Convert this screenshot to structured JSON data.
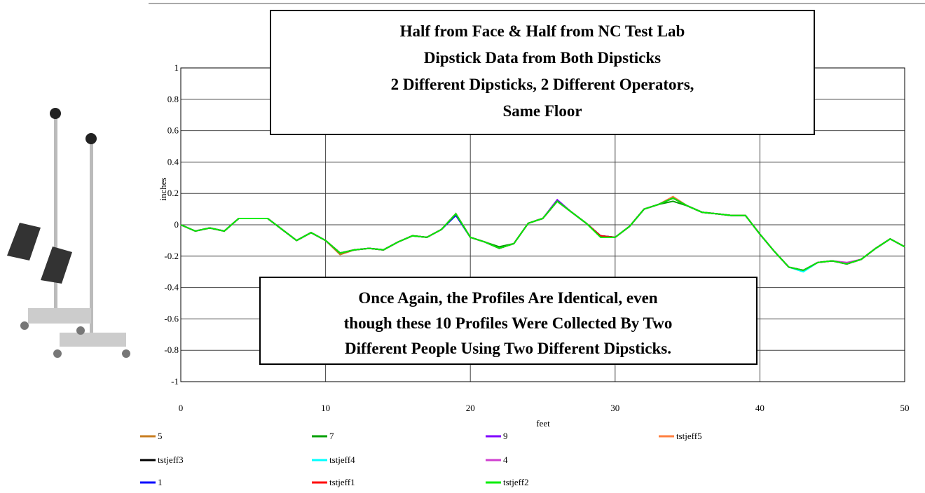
{
  "chart_data": {
    "type": "line",
    "title_lines": [
      "Half from Face & Half from NC Test Lab",
      "Dipstick Data from Both Dipsticks",
      "2 Different Dipsticks, 2 Different Operators,",
      "Same Floor"
    ],
    "annotation_lines": [
      "Once Again, the Profiles Are Identical, even",
      "though these 10 Profiles Were Collected By Two",
      "Different People Using Two Different Dipsticks."
    ],
    "xlabel": "feet",
    "ylabel": "inches",
    "xlim": [
      0,
      50
    ],
    "xticks": [
      0,
      10,
      20,
      30,
      40,
      50
    ],
    "ylim": [
      -1,
      1
    ],
    "yticks": [
      -1,
      -0.8,
      -0.6,
      -0.4,
      -0.2,
      0,
      0.2,
      0.4,
      0.6,
      0.8,
      1
    ],
    "grid": true,
    "x": [
      0,
      1,
      2,
      3,
      4,
      5,
      6,
      7,
      8,
      9,
      10,
      11,
      12,
      13,
      14,
      15,
      16,
      17,
      18,
      19,
      20,
      21,
      22,
      23,
      24,
      25,
      26,
      27,
      28,
      29,
      30,
      31,
      32,
      33,
      34,
      35,
      36,
      37,
      38,
      39,
      40,
      41,
      42,
      43,
      44,
      45,
      46,
      47,
      48,
      49,
      50
    ],
    "series": [
      {
        "name": "5",
        "color": "#c87d20",
        "values": [
          0,
          -0.04,
          -0.02,
          -0.04,
          0.04,
          0.04,
          0.04,
          -0.03,
          -0.1,
          -0.05,
          -0.1,
          -0.19,
          -0.16,
          -0.15,
          -0.16,
          -0.11,
          -0.07,
          -0.08,
          -0.03,
          0.07,
          -0.08,
          -0.11,
          -0.15,
          -0.12,
          0.01,
          0.04,
          0.15,
          0.08,
          0.01,
          -0.07,
          -0.08,
          -0.01,
          0.1,
          0.13,
          0.17,
          0.12,
          0.08,
          0.07,
          0.06,
          0.06,
          -0.06,
          -0.17,
          -0.27,
          -0.29,
          -0.24,
          -0.23,
          -0.25,
          -0.22,
          -0.15,
          -0.09,
          -0.14
        ]
      },
      {
        "name": "7",
        "color": "#00a000",
        "values": [
          0,
          -0.04,
          -0.02,
          -0.04,
          0.04,
          0.04,
          0.04,
          -0.03,
          -0.1,
          -0.05,
          -0.1,
          -0.18,
          -0.16,
          -0.15,
          -0.16,
          -0.11,
          -0.07,
          -0.08,
          -0.03,
          0.07,
          -0.08,
          -0.11,
          -0.14,
          -0.12,
          0.01,
          0.04,
          0.15,
          0.08,
          0.01,
          -0.07,
          -0.08,
          -0.01,
          0.1,
          0.13,
          0.15,
          0.12,
          0.08,
          0.07,
          0.06,
          0.06,
          -0.06,
          -0.17,
          -0.27,
          -0.29,
          -0.24,
          -0.23,
          -0.25,
          -0.22,
          -0.15,
          -0.09,
          -0.14
        ]
      },
      {
        "name": "9",
        "color": "#8000ff",
        "values": [
          0,
          -0.04,
          -0.02,
          -0.04,
          0.04,
          0.04,
          0.04,
          -0.03,
          -0.1,
          -0.05,
          -0.1,
          -0.18,
          -0.16,
          -0.15,
          -0.16,
          -0.11,
          -0.07,
          -0.08,
          -0.03,
          0.07,
          -0.08,
          -0.11,
          -0.15,
          -0.12,
          0.01,
          0.04,
          0.16,
          0.08,
          0.01,
          -0.07,
          -0.08,
          -0.01,
          0.1,
          0.13,
          0.17,
          0.12,
          0.08,
          0.07,
          0.06,
          0.06,
          -0.06,
          -0.17,
          -0.27,
          -0.29,
          -0.24,
          -0.23,
          -0.25,
          -0.22,
          -0.15,
          -0.09,
          -0.14
        ]
      },
      {
        "name": "tstjeff5",
        "color": "#ff8040",
        "values": [
          0,
          -0.04,
          -0.02,
          -0.04,
          0.04,
          0.04,
          0.04,
          -0.03,
          -0.1,
          -0.05,
          -0.1,
          -0.18,
          -0.16,
          -0.15,
          -0.16,
          -0.11,
          -0.07,
          -0.08,
          -0.03,
          0.07,
          -0.08,
          -0.11,
          -0.15,
          -0.12,
          0.01,
          0.04,
          0.15,
          0.08,
          0.01,
          -0.07,
          -0.08,
          -0.01,
          0.1,
          0.13,
          0.18,
          0.12,
          0.08,
          0.07,
          0.06,
          0.06,
          -0.06,
          -0.17,
          -0.27,
          -0.29,
          -0.24,
          -0.23,
          -0.25,
          -0.22,
          -0.15,
          -0.09,
          -0.14
        ]
      },
      {
        "name": "tstjeff3",
        "color": "#000000",
        "values": [
          0,
          -0.04,
          -0.02,
          -0.04,
          0.04,
          0.04,
          0.04,
          -0.03,
          -0.1,
          -0.05,
          -0.1,
          -0.18,
          -0.16,
          -0.15,
          -0.16,
          -0.11,
          -0.07,
          -0.08,
          -0.03,
          0.07,
          -0.08,
          -0.11,
          -0.15,
          -0.12,
          0.01,
          0.04,
          0.15,
          0.08,
          0.01,
          -0.07,
          -0.08,
          -0.01,
          0.1,
          0.13,
          0.17,
          0.12,
          0.08,
          0.07,
          0.06,
          0.06,
          -0.06,
          -0.17,
          -0.27,
          -0.29,
          -0.24,
          -0.23,
          -0.25,
          -0.22,
          -0.15,
          -0.09,
          -0.14
        ]
      },
      {
        "name": "tstjeff4",
        "color": "#00ffff",
        "values": [
          0,
          -0.04,
          -0.02,
          -0.04,
          0.04,
          0.04,
          0.04,
          -0.03,
          -0.1,
          -0.05,
          -0.1,
          -0.18,
          -0.16,
          -0.15,
          -0.16,
          -0.11,
          -0.07,
          -0.08,
          -0.03,
          0.07,
          -0.08,
          -0.11,
          -0.15,
          -0.12,
          0.01,
          0.04,
          0.15,
          0.08,
          0.01,
          -0.07,
          -0.08,
          -0.01,
          0.1,
          0.13,
          0.17,
          0.12,
          0.08,
          0.07,
          0.06,
          0.06,
          -0.06,
          -0.17,
          -0.27,
          -0.3,
          -0.24,
          -0.23,
          -0.25,
          -0.22,
          -0.15,
          -0.09,
          -0.14
        ]
      },
      {
        "name": "4",
        "color": "#d040d0",
        "values": [
          0,
          -0.04,
          -0.02,
          -0.04,
          0.04,
          0.04,
          0.04,
          -0.03,
          -0.1,
          -0.05,
          -0.1,
          -0.18,
          -0.16,
          -0.15,
          -0.16,
          -0.11,
          -0.07,
          -0.08,
          -0.03,
          0.07,
          -0.08,
          -0.11,
          -0.15,
          -0.12,
          0.01,
          0.04,
          0.15,
          0.08,
          0.01,
          -0.07,
          -0.08,
          -0.01,
          0.1,
          0.13,
          0.17,
          0.12,
          0.08,
          0.07,
          0.06,
          0.06,
          -0.06,
          -0.17,
          -0.27,
          -0.29,
          -0.24,
          -0.23,
          -0.24,
          -0.22,
          -0.15,
          -0.09,
          -0.14
        ]
      },
      {
        "name": "1",
        "color": "#0000ff",
        "values": [
          0,
          -0.04,
          -0.02,
          -0.04,
          0.04,
          0.04,
          0.04,
          -0.03,
          -0.1,
          -0.05,
          -0.1,
          -0.18,
          -0.16,
          -0.15,
          -0.16,
          -0.11,
          -0.07,
          -0.08,
          -0.03,
          0.06,
          -0.08,
          -0.11,
          -0.15,
          -0.12,
          0.01,
          0.04,
          0.15,
          0.08,
          0.01,
          -0.07,
          -0.08,
          -0.01,
          0.1,
          0.13,
          0.17,
          0.12,
          0.08,
          0.07,
          0.06,
          0.06,
          -0.06,
          -0.17,
          -0.27,
          -0.29,
          -0.24,
          -0.23,
          -0.25,
          -0.22,
          -0.15,
          -0.09,
          -0.14
        ]
      },
      {
        "name": "tstjeff1",
        "color": "#ff0000",
        "values": [
          0,
          -0.04,
          -0.02,
          -0.04,
          0.04,
          0.04,
          0.04,
          -0.03,
          -0.1,
          -0.05,
          -0.1,
          -0.18,
          -0.16,
          -0.15,
          -0.16,
          -0.11,
          -0.07,
          -0.08,
          -0.03,
          0.07,
          -0.08,
          -0.11,
          -0.15,
          -0.12,
          0.01,
          0.04,
          0.15,
          0.08,
          0.01,
          -0.07,
          -0.08,
          -0.01,
          0.1,
          0.13,
          0.17,
          0.12,
          0.08,
          0.07,
          0.06,
          0.06,
          -0.06,
          -0.17,
          -0.27,
          -0.29,
          -0.24,
          -0.23,
          -0.25,
          -0.22,
          -0.15,
          -0.09,
          -0.14
        ]
      },
      {
        "name": "tstjeff2",
        "color": "#00ee00",
        "values": [
          0,
          -0.04,
          -0.02,
          -0.04,
          0.04,
          0.04,
          0.04,
          -0.03,
          -0.1,
          -0.05,
          -0.1,
          -0.18,
          -0.16,
          -0.15,
          -0.16,
          -0.11,
          -0.07,
          -0.08,
          -0.03,
          0.07,
          -0.08,
          -0.11,
          -0.15,
          -0.12,
          0.01,
          0.04,
          0.15,
          0.08,
          0.01,
          -0.08,
          -0.08,
          -0.01,
          0.1,
          0.13,
          0.17,
          0.12,
          0.08,
          0.07,
          0.06,
          0.06,
          -0.06,
          -0.17,
          -0.27,
          -0.29,
          -0.24,
          -0.23,
          -0.25,
          -0.22,
          -0.15,
          -0.09,
          -0.14
        ]
      }
    ]
  }
}
